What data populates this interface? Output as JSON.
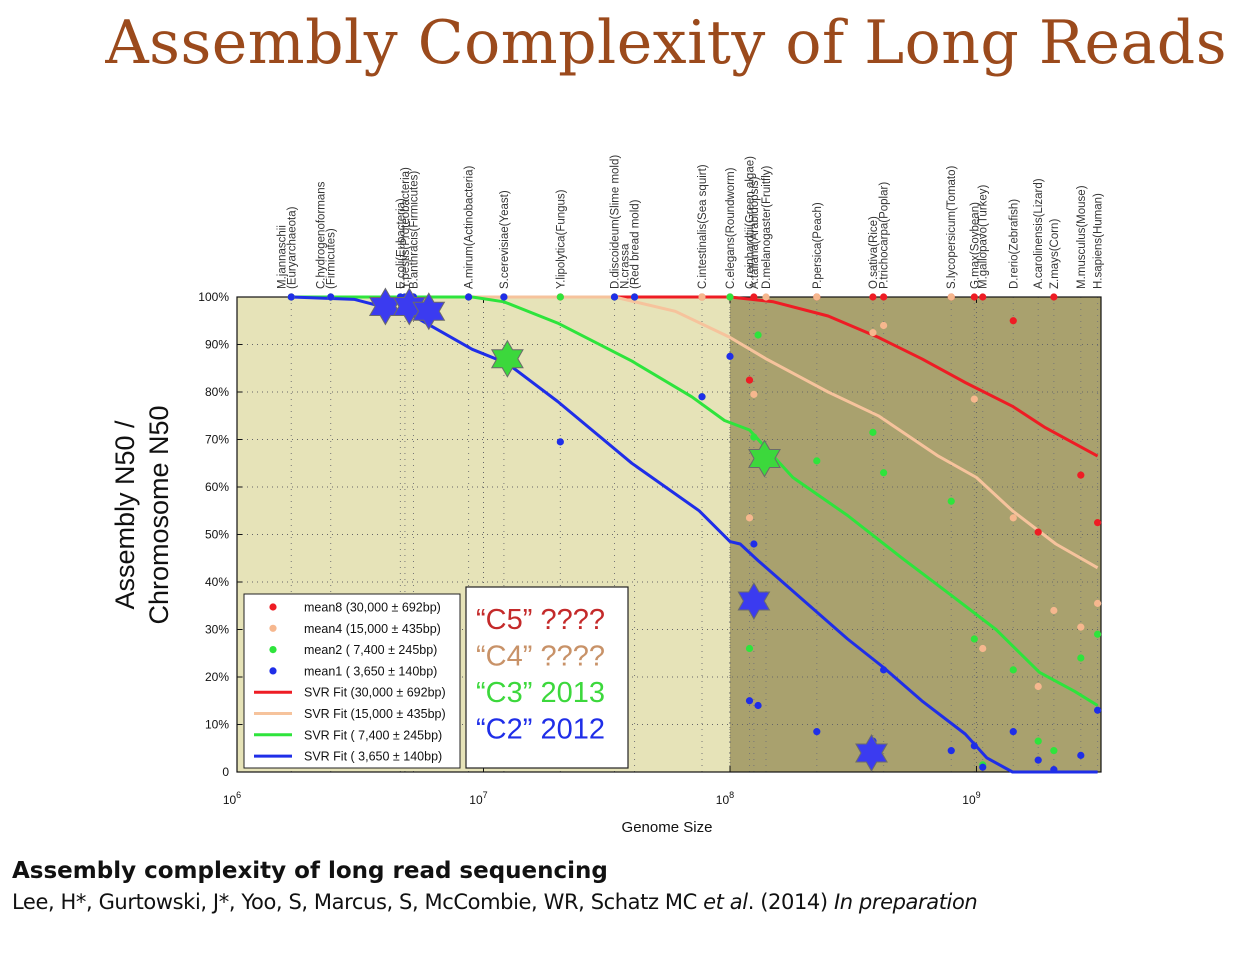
{
  "slide": {
    "title": "Assembly Complexity of Long Reads"
  },
  "footer": {
    "ref_title": "Assembly complexity of long read sequencing",
    "authors": "Lee, H*, Gurtowski, J*, Yoo, S, Marcus, S, McCombie, WR, Schatz MC ",
    "etal": "et al",
    "year": ". (2014) ",
    "status": "In preparation"
  },
  "chart_data": {
    "type": "scatter",
    "xlabel": "Genome Size",
    "ylabel_lines": [
      "Assembly N50 /",
      "Chromosome N50"
    ],
    "xscale": "log",
    "xlim": [
      1000000,
      3200000000
    ],
    "ylim": [
      0,
      100
    ],
    "x_ticks": [
      {
        "value": 1000000,
        "base": "10",
        "exp": "6"
      },
      {
        "value": 10000000,
        "base": "10",
        "exp": "7"
      },
      {
        "value": 100000000,
        "base": "10",
        "exp": "8"
      },
      {
        "value": 1000000000,
        "base": "10",
        "exp": "9"
      }
    ],
    "y_ticks": [
      {
        "value": 0,
        "label": "0"
      },
      {
        "value": 10,
        "label": "10%"
      },
      {
        "value": 20,
        "label": "20%"
      },
      {
        "value": 30,
        "label": "30%"
      },
      {
        "value": 40,
        "label": "40%"
      },
      {
        "value": 50,
        "label": "50%"
      },
      {
        "value": 60,
        "label": "60%"
      },
      {
        "value": 70,
        "label": "70%"
      },
      {
        "value": 80,
        "label": "80%"
      },
      {
        "value": 90,
        "label": "90%"
      },
      {
        "value": 100,
        "label": "100%"
      }
    ],
    "grid": "dotted",
    "background_regions": [
      {
        "x_from": 1000000,
        "x_to": 100000000,
        "color": "#e6e3b8"
      },
      {
        "x_from": 100000000,
        "x_to": 3200000000,
        "color": "#a9a16e"
      }
    ],
    "genomes": [
      {
        "x": 1660000,
        "label": "M.jannaschii",
        "sub": "(Euryarchaeota)"
      },
      {
        "x": 2400000,
        "label": "C.hydrogenoformans",
        "sub": "(Firmicutes)"
      },
      {
        "x": 4600000,
        "label": "E.coli(Eubacteria)"
      },
      {
        "x": 4800000,
        "label": "Y.pestis(Proteobacteria)"
      },
      {
        "x": 5200000,
        "label": "B.anthracis(Firmicutes)"
      },
      {
        "x": 8700000,
        "label": "A.mirum(Actinobacteria)"
      },
      {
        "x": 12100000,
        "label": "S.cerevisiae(Yeast)"
      },
      {
        "x": 20500000,
        "label": "Y.lipolytica(Fungus)"
      },
      {
        "x": 34000000,
        "label": "D.discoideum(Slime mold)"
      },
      {
        "x": 41000000,
        "label": "N.crassa",
        "sub": "(Red bread mold)"
      },
      {
        "x": 77000000,
        "label": "C.intestinalis(Sea squirt)"
      },
      {
        "x": 100000000,
        "label": "C.elegans(Roundworm)"
      },
      {
        "x": 120000000,
        "label": "C.reinhardtii(Green algae)"
      },
      {
        "x": 125000000,
        "label": "A.taliana(Arabidopsis)"
      },
      {
        "x": 140000000,
        "label": "D.melanogaster(Fruitfly)"
      },
      {
        "x": 225000000,
        "label": "P.persica(Peach)"
      },
      {
        "x": 380000000,
        "label": "O.sativa(Rice)"
      },
      {
        "x": 420000000,
        "label": "P.trichocarpa(Poplar)"
      },
      {
        "x": 790000000,
        "label": "S.lycopersicum(Tomato)"
      },
      {
        "x": 980000000,
        "label": "G.max(Soybean)"
      },
      {
        "x": 1060000000,
        "label": "M.gallopavo(Turkey)"
      },
      {
        "x": 1410000000,
        "label": "D.rerio(Zebrafish)"
      },
      {
        "x": 1780000000,
        "label": "A.carolinensis(Lizard)"
      },
      {
        "x": 2060000000,
        "label": "Z.mays(Corn)"
      },
      {
        "x": 2650000000,
        "label": "M.musculus(Mouse)"
      },
      {
        "x": 3100000000,
        "label": "H.sapiens(Human)"
      }
    ],
    "series": [
      {
        "name": "mean8 (30,000 ± 692bp)",
        "color": "#ee1c24",
        "kind": "points",
        "points": [
          [
            1660000,
            100
          ],
          [
            2400000,
            100
          ],
          [
            4600000,
            100
          ],
          [
            4800000,
            100
          ],
          [
            5200000,
            100
          ],
          [
            8700000,
            100
          ],
          [
            12100000,
            100
          ],
          [
            20500000,
            100
          ],
          [
            34000000,
            100
          ],
          [
            41000000,
            100
          ],
          [
            77000000,
            100
          ],
          [
            100000000,
            100
          ],
          [
            120000000,
            82.5
          ],
          [
            125000000,
            100
          ],
          [
            225000000,
            100
          ],
          [
            380000000,
            100
          ],
          [
            420000000,
            100
          ],
          [
            790000000,
            100
          ],
          [
            980000000,
            100
          ],
          [
            1060000000,
            100
          ],
          [
            1410000000,
            95
          ],
          [
            1780000000,
            50.5
          ],
          [
            2060000000,
            100
          ],
          [
            2650000000,
            62.5
          ],
          [
            3100000000,
            52.5
          ]
        ]
      },
      {
        "name": "mean4 (15,000 ± 435bp)",
        "color": "#f6b78e",
        "kind": "points",
        "points": [
          [
            1660000,
            100
          ],
          [
            2400000,
            100
          ],
          [
            4600000,
            100
          ],
          [
            4800000,
            100
          ],
          [
            5200000,
            100
          ],
          [
            8700000,
            100
          ],
          [
            12100000,
            100
          ],
          [
            20500000,
            100
          ],
          [
            34000000,
            100
          ],
          [
            41000000,
            100
          ],
          [
            77000000,
            100
          ],
          [
            100000000,
            100
          ],
          [
            120000000,
            53.5
          ],
          [
            125000000,
            79.5
          ],
          [
            140000000,
            100
          ],
          [
            225000000,
            100
          ],
          [
            380000000,
            92.5
          ],
          [
            420000000,
            94
          ],
          [
            790000000,
            100
          ],
          [
            980000000,
            78.5
          ],
          [
            1060000000,
            26
          ],
          [
            1410000000,
            53.5
          ],
          [
            1780000000,
            18
          ],
          [
            2060000000,
            34
          ],
          [
            2650000000,
            30.5
          ],
          [
            3100000000,
            35.5
          ]
        ]
      },
      {
        "name": "mean2 ( 7,400 ± 245bp)",
        "color": "#2ee43c",
        "kind": "points",
        "points": [
          [
            1660000,
            100
          ],
          [
            2400000,
            100
          ],
          [
            4600000,
            100
          ],
          [
            4800000,
            100
          ],
          [
            5200000,
            100
          ],
          [
            8700000,
            100
          ],
          [
            12100000,
            100
          ],
          [
            20500000,
            100
          ],
          [
            34000000,
            100
          ],
          [
            41000000,
            100
          ],
          [
            77000000,
            79
          ],
          [
            100000000,
            100
          ],
          [
            120000000,
            26
          ],
          [
            125000000,
            70.5
          ],
          [
            130000000,
            92
          ],
          [
            225000000,
            65.5
          ],
          [
            380000000,
            71.5
          ],
          [
            420000000,
            63
          ],
          [
            790000000,
            57
          ],
          [
            980000000,
            28
          ],
          [
            1060000000,
            1.5
          ],
          [
            1410000000,
            21.5
          ],
          [
            1780000000,
            6.5
          ],
          [
            2060000000,
            4.5
          ],
          [
            2650000000,
            24
          ],
          [
            3100000000,
            29
          ]
        ]
      },
      {
        "name": "mean1 ( 3,650 ± 140bp)",
        "color": "#1f2ee8",
        "kind": "points",
        "points": [
          [
            1660000,
            100
          ],
          [
            2400000,
            100
          ],
          [
            4600000,
            100
          ],
          [
            4800000,
            100
          ],
          [
            5200000,
            100
          ],
          [
            8700000,
            100
          ],
          [
            12100000,
            100
          ],
          [
            20500000,
            69.5
          ],
          [
            34000000,
            100
          ],
          [
            41000000,
            100
          ],
          [
            77000000,
            79
          ],
          [
            100000000,
            87.5
          ],
          [
            120000000,
            15
          ],
          [
            125000000,
            48
          ],
          [
            130000000,
            14
          ],
          [
            225000000,
            8.5
          ],
          [
            380000000,
            6.5
          ],
          [
            420000000,
            21.5
          ],
          [
            790000000,
            4.5
          ],
          [
            980000000,
            5.5
          ],
          [
            1060000000,
            1
          ],
          [
            1410000000,
            8.5
          ],
          [
            1780000000,
            2.5
          ],
          [
            2060000000,
            0.5
          ],
          [
            2650000000,
            3.5
          ],
          [
            3100000000,
            13
          ]
        ]
      },
      {
        "name": "SVR Fit (30,000 ± 692bp)",
        "color": "#ee1c24",
        "kind": "line",
        "points": [
          [
            1660000,
            100
          ],
          [
            35000000,
            100
          ],
          [
            100000000,
            100
          ],
          [
            150000000,
            99
          ],
          [
            250000000,
            96
          ],
          [
            400000000,
            91.5
          ],
          [
            600000000,
            87
          ],
          [
            900000000,
            82
          ],
          [
            1400000000,
            77
          ],
          [
            1900000000,
            72.5
          ],
          [
            3100000000,
            66.5
          ]
        ]
      },
      {
        "name": "SVR Fit (15,000 ± 435bp)",
        "color": "#f6c39c",
        "kind": "line",
        "points": [
          [
            1660000,
            100
          ],
          [
            34000000,
            100
          ],
          [
            60000000,
            97
          ],
          [
            100000000,
            91.5
          ],
          [
            140000000,
            87
          ],
          [
            250000000,
            80
          ],
          [
            400000000,
            75
          ],
          [
            700000000,
            66.5
          ],
          [
            1000000000,
            62
          ],
          [
            1400000000,
            55
          ],
          [
            2100000000,
            48
          ],
          [
            3100000000,
            43
          ]
        ]
      },
      {
        "name": "SVR Fit ( 7,400 ± 245bp)",
        "color": "#2ee43c",
        "kind": "line",
        "points": [
          [
            1660000,
            100
          ],
          [
            9000000,
            100
          ],
          [
            12100000,
            99
          ],
          [
            20000000,
            94.5
          ],
          [
            40000000,
            86.5
          ],
          [
            70000000,
            79
          ],
          [
            95000000,
            74
          ],
          [
            120000000,
            72
          ],
          [
            180000000,
            62
          ],
          [
            300000000,
            54
          ],
          [
            500000000,
            45
          ],
          [
            800000000,
            37
          ],
          [
            1200000000,
            30
          ],
          [
            1800000000,
            21
          ],
          [
            2500000000,
            17
          ],
          [
            3100000000,
            14
          ]
        ]
      },
      {
        "name": "SVR Fit ( 3,650 ± 140bp)",
        "color": "#1f2ee8",
        "kind": "line",
        "points": [
          [
            1660000,
            100
          ],
          [
            3000000,
            99.5
          ],
          [
            5000000,
            96.5
          ],
          [
            9000000,
            89
          ],
          [
            12500000,
            86
          ],
          [
            20000000,
            78
          ],
          [
            40000000,
            65
          ],
          [
            75000000,
            55
          ],
          [
            100000000,
            48.5
          ],
          [
            110000000,
            48
          ],
          [
            130000000,
            44.5
          ],
          [
            200000000,
            36
          ],
          [
            300000000,
            28
          ],
          [
            420000000,
            22
          ],
          [
            600000000,
            15
          ],
          [
            900000000,
            8
          ],
          [
            1100000000,
            3
          ],
          [
            1400000000,
            0
          ],
          [
            3100000000,
            0
          ]
        ]
      }
    ],
    "stars": [
      {
        "x": 4000000,
        "y": 98,
        "color": "#3b3bf0"
      },
      {
        "x": 5000000,
        "y": 98,
        "color": "#3b3bf0"
      },
      {
        "x": 6000000,
        "y": 97,
        "color": "#3b3bf0"
      },
      {
        "x": 12500000,
        "y": 87,
        "color": "#3cd83c"
      },
      {
        "x": 138000000,
        "y": 66,
        "color": "#3cd83c"
      },
      {
        "x": 125000000,
        "y": 36,
        "color": "#3b3bf0"
      },
      {
        "x": 375000000,
        "y": 4,
        "color": "#3b3bf0"
      }
    ],
    "annotations": [
      {
        "label": "“C5” ????",
        "color": "#c42a2a"
      },
      {
        "label": "“C4” ????",
        "color": "#c89268"
      },
      {
        "label": "“C3” 2013",
        "color": "#3cd83c"
      },
      {
        "label": "“C2” 2012",
        "color": "#1f2ee8"
      }
    ],
    "legend_position": "bottom-left"
  }
}
